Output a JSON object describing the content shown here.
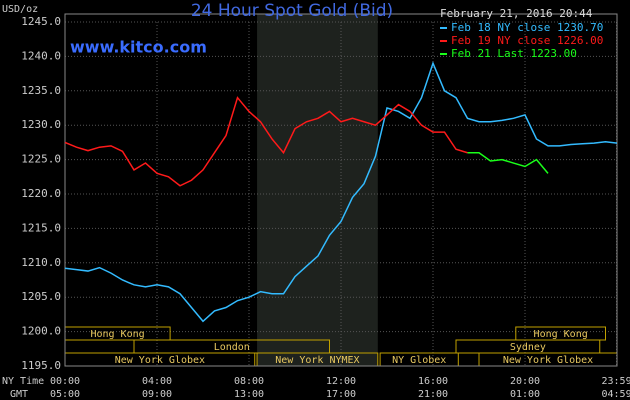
{
  "chart_data": {
    "type": "line",
    "title": "24 Hour Spot Gold (Bid)",
    "timestamp": "February 21, 2016 20:44",
    "watermark": "www.kitco.com",
    "y_label": "USD/oz",
    "x_label": "NY Time",
    "x2_label": "GMT",
    "xlim": [
      0,
      24
    ],
    "ylim": [
      1195,
      1245
    ],
    "yticks": [
      {
        "value": 1195,
        "label": "1195.0"
      },
      {
        "value": 1200,
        "label": "1200.0"
      },
      {
        "value": 1205,
        "label": "1205.0"
      },
      {
        "value": 1210,
        "label": "1210.0"
      },
      {
        "value": 1215,
        "label": "1215.0"
      },
      {
        "value": 1220,
        "label": "1220.0"
      },
      {
        "value": 1225,
        "label": "1225.0"
      },
      {
        "value": 1230,
        "label": "1230.0"
      },
      {
        "value": 1235,
        "label": "1235.0"
      },
      {
        "value": 1240,
        "label": "1240.0"
      },
      {
        "value": 1245,
        "label": "1245.0"
      }
    ],
    "xticks": [
      {
        "value": 0,
        "label": "00:00"
      },
      {
        "value": 4,
        "label": "04:00"
      },
      {
        "value": 8,
        "label": "08:00"
      },
      {
        "value": 12,
        "label": "12:00"
      },
      {
        "value": 16,
        "label": "16:00"
      },
      {
        "value": 20,
        "label": "20:00"
      },
      {
        "value": 23.98,
        "label": "23:59"
      }
    ],
    "x2ticks": [
      {
        "value": 0,
        "label": "05:00"
      },
      {
        "value": 4,
        "label": "09:00"
      },
      {
        "value": 8,
        "label": "13:00"
      },
      {
        "value": 12,
        "label": "17:00"
      },
      {
        "value": 16,
        "label": "21:00"
      },
      {
        "value": 20,
        "label": "01:00"
      },
      {
        "value": 23.98,
        "label": "04:59"
      }
    ],
    "grid": true,
    "shaded_x": [
      8.35,
      13.6
    ],
    "session_rows": [
      [
        {
          "label": "Hong Kong",
          "start": 0,
          "end": 4.57
        },
        {
          "label": "Hong Kong",
          "start": 19.6,
          "end": 23.5
        }
      ],
      [
        {
          "label": "London",
          "start": 3,
          "end": 11.5
        },
        {
          "label": "Sydney",
          "start": 17,
          "end": 23.25
        }
      ],
      [
        {
          "label": "New York Globex",
          "start": 0,
          "end": 8.25
        },
        {
          "label": "New York NYMEX",
          "start": 8.35,
          "end": 13.6
        },
        {
          "label": "NY Globex",
          "start": 13.7,
          "end": 17.1
        },
        {
          "label": "New York Globex",
          "start": 18,
          "end": 24
        }
      ]
    ],
    "series": [
      {
        "name": "Feb 18 NY close 1230.70",
        "color": "#33bbff",
        "x": [
          0,
          0.5,
          1,
          1.5,
          2,
          2.5,
          3,
          3.5,
          4,
          4.5,
          5,
          5.5,
          6,
          6.5,
          7,
          7.5,
          8,
          8.5,
          9,
          9.5,
          10,
          10.5,
          11,
          11.5,
          12,
          12.5,
          13,
          13.5,
          14,
          14.5,
          15,
          15.5,
          16,
          16.5,
          17,
          17.5,
          18,
          18.5,
          19,
          19.5,
          20,
          20.5,
          21,
          21.5,
          22,
          22.5,
          23,
          23.5,
          24
        ],
        "values": [
          1209.2,
          1209,
          1208.8,
          1209.3,
          1208.5,
          1207.5,
          1206.8,
          1206.5,
          1206.8,
          1206.5,
          1205.5,
          1203.5,
          1201.5,
          1203,
          1203.5,
          1204.5,
          1205,
          1205.8,
          1205.5,
          1205.5,
          1208,
          1209.5,
          1211,
          1214,
          1216,
          1219.5,
          1221.5,
          1225.5,
          1232.5,
          1232,
          1231,
          1234,
          1239,
          1235,
          1234,
          1231,
          1230.5,
          1230.5,
          1230.7,
          1231,
          1231.5,
          1228,
          1227,
          1227,
          1227.2,
          1227.3,
          1227.4,
          1227.6,
          1227.4
        ]
      },
      {
        "name": "Feb 19 NY close 1226.00",
        "color": "#ff1a1a",
        "x": [
          0,
          0.5,
          1,
          1.5,
          2,
          2.5,
          3,
          3.5,
          4,
          4.5,
          5,
          5.5,
          6,
          6.5,
          7,
          7.5,
          8,
          8.5,
          9,
          9.5,
          10,
          10.5,
          11,
          11.5,
          12,
          12.5,
          13,
          13.5,
          14,
          14.5,
          15,
          15.5,
          16,
          16.5,
          17,
          17.5
        ],
        "values": [
          1227.5,
          1226.8,
          1226.3,
          1226.8,
          1227,
          1226.2,
          1223.5,
          1224.5,
          1223,
          1222.5,
          1221.2,
          1222,
          1223.5,
          1226,
          1228.5,
          1234,
          1232,
          1230.5,
          1228,
          1226,
          1229.5,
          1230.5,
          1231,
          1232,
          1230.5,
          1231,
          1230.5,
          1230,
          1231.5,
          1233,
          1232,
          1230,
          1229,
          1229,
          1226.5,
          1226
        ]
      },
      {
        "name": "Feb 21 Last 1223.00",
        "color": "#1aff1a",
        "x": [
          17.5,
          18,
          18.5,
          19,
          19.5,
          20,
          20.5,
          21
        ],
        "values": [
          1226,
          1226,
          1224.8,
          1225,
          1224.5,
          1224,
          1225,
          1223
        ]
      }
    ]
  }
}
